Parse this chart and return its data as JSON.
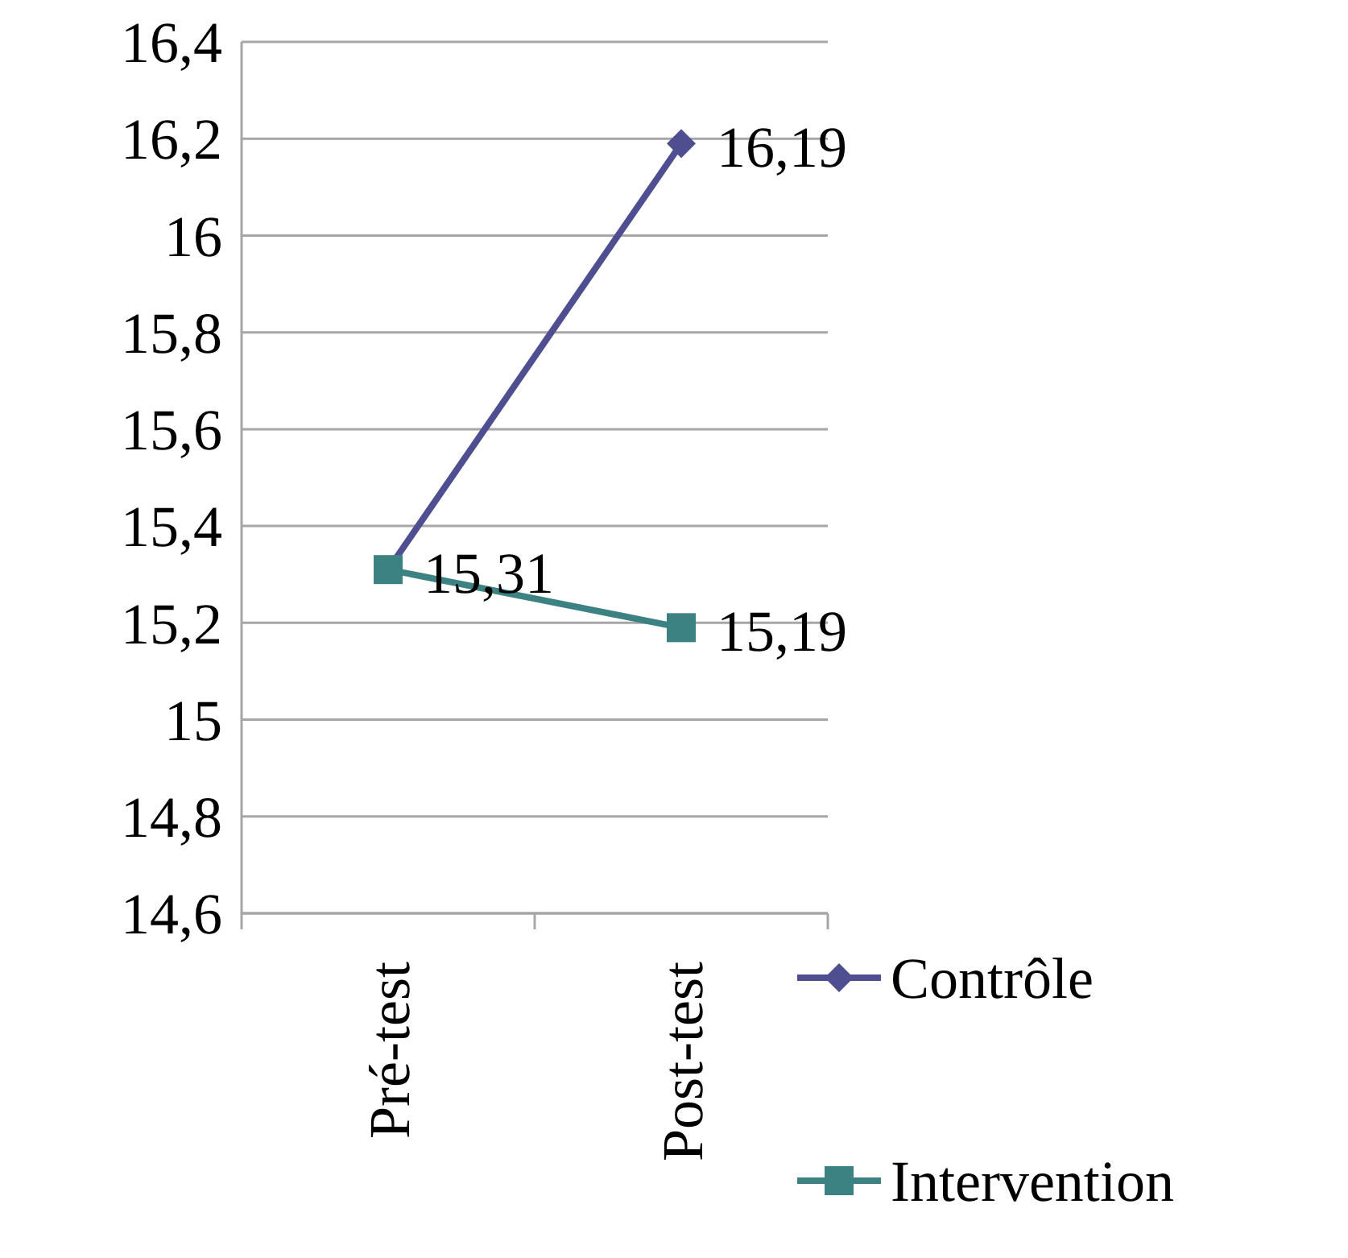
{
  "chart_data": {
    "type": "line",
    "categories": [
      "Pré-test",
      "Post-test"
    ],
    "series": [
      {
        "name": "Contrôle",
        "color": "#4e4e90",
        "values": [
          15.31,
          16.19
        ],
        "marker": "diamond",
        "value_labels": [
          null,
          "16,19"
        ]
      },
      {
        "name": "Intervention",
        "color": "#3d8282",
        "values": [
          15.31,
          15.19
        ],
        "marker": "square",
        "value_labels": [
          "15,31",
          "15,19"
        ]
      }
    ],
    "ylim": [
      14.6,
      16.4
    ],
    "yticks": [
      {
        "value": 14.6,
        "label": "14,6"
      },
      {
        "value": 14.8,
        "label": "14,8"
      },
      15,
      {
        "value": 15.2,
        "label": "15,2"
      },
      {
        "value": 15.4,
        "label": "15,4"
      },
      {
        "value": 15.6,
        "label": "15,6"
      },
      {
        "value": 15.8,
        "label": "15,8"
      },
      16,
      {
        "value": 16.2,
        "label": "16,2"
      },
      {
        "value": 16.4,
        "label": "16,4"
      }
    ],
    "grid": "y",
    "legend": "right"
  }
}
